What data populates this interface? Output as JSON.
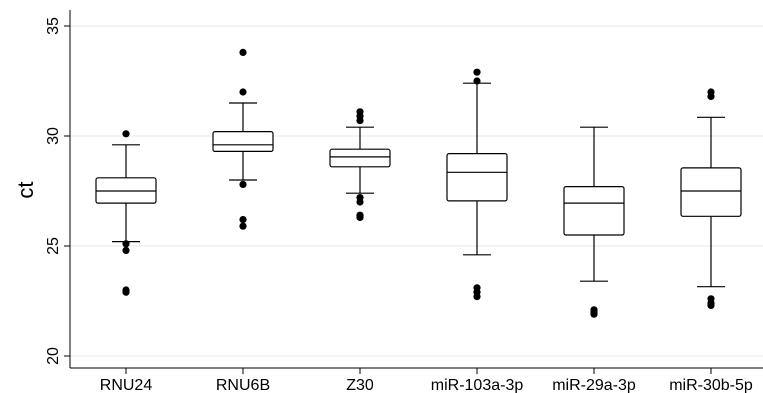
{
  "chart_data": {
    "type": "box",
    "title": "",
    "xlabel": "",
    "ylabel": "ct",
    "ylim": [
      20,
      35
    ],
    "yticks": [
      20,
      25,
      30,
      35
    ],
    "grid": true,
    "categories": [
      "RNU24",
      "RNU6B",
      "Z30",
      "miR-103a-3p",
      "miR-29a-3p",
      "miR-30b-5p"
    ],
    "boxes": [
      {
        "category": "RNU24",
        "whisker_low": 25.2,
        "q1": 26.95,
        "median": 27.5,
        "q3": 28.1,
        "whisker_high": 29.6,
        "outliers": [
          30.1,
          25.1,
          24.8,
          23.0,
          22.9
        ]
      },
      {
        "category": "RNU6B",
        "whisker_low": 28.0,
        "q1": 29.3,
        "median": 29.6,
        "q3": 30.2,
        "whisker_high": 31.5,
        "outliers": [
          33.8,
          32.0,
          27.8,
          26.2,
          25.9
        ]
      },
      {
        "category": "Z30",
        "whisker_low": 27.4,
        "q1": 28.6,
        "median": 29.05,
        "q3": 29.4,
        "whisker_high": 30.4,
        "outliers": [
          31.1,
          30.9,
          30.7,
          27.2,
          27.0,
          26.4,
          26.3
        ]
      },
      {
        "category": "miR-103a-3p",
        "whisker_low": 24.6,
        "q1": 27.05,
        "median": 28.35,
        "q3": 29.2,
        "whisker_high": 32.4,
        "outliers": [
          32.9,
          32.5,
          23.1,
          22.9,
          22.7
        ]
      },
      {
        "category": "miR-29a-3p",
        "whisker_low": 23.4,
        "q1": 25.5,
        "median": 26.95,
        "q3": 27.7,
        "whisker_high": 30.4,
        "outliers": [
          22.1,
          22.0,
          21.9
        ]
      },
      {
        "category": "miR-30b-5p",
        "whisker_low": 23.15,
        "q1": 26.35,
        "median": 27.5,
        "q3": 28.55,
        "whisker_high": 30.85,
        "outliers": [
          32.0,
          31.8,
          22.6,
          22.4,
          22.3
        ]
      }
    ]
  }
}
